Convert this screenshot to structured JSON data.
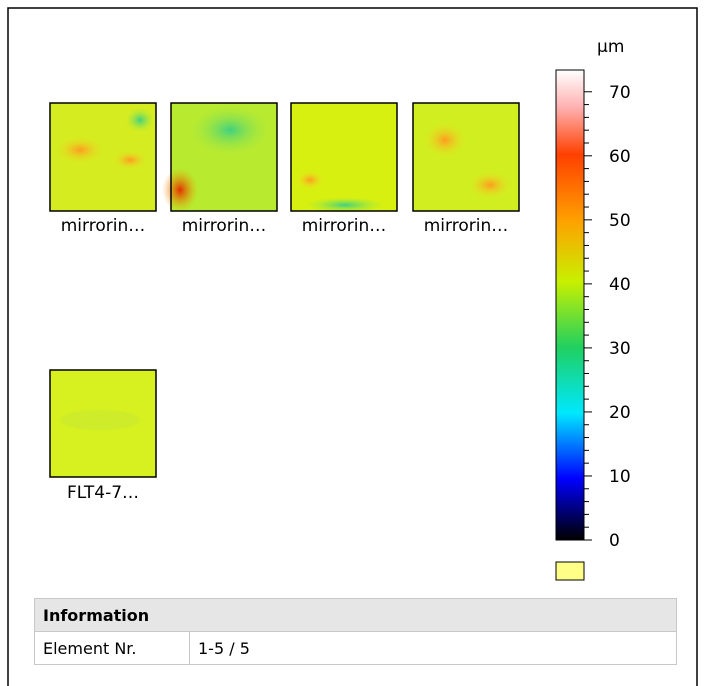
{
  "thumbnails": [
    {
      "label": "mirrorin…"
    },
    {
      "label": "mirrorin…"
    },
    {
      "label": "mirrorin…"
    },
    {
      "label": "mirrorin…"
    },
    {
      "label": "FLT4-7…"
    }
  ],
  "colorbar": {
    "unit": "µm",
    "range": [
      0,
      73.4
    ],
    "ticks": [
      0,
      10,
      20,
      30,
      40,
      50,
      60,
      70
    ]
  },
  "info": {
    "title": "Information",
    "rows": [
      [
        "Element Nr.",
        "1-5 / 5"
      ]
    ]
  }
}
